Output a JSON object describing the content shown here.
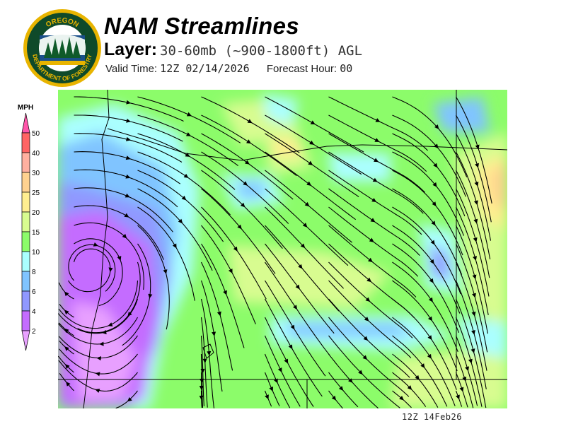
{
  "logo": {
    "text_top": "OREGON",
    "text_bottom": "DEPARTMENT OF FORESTRY"
  },
  "header": {
    "title": "NAM Streamlines",
    "layer_label": "Layer:",
    "layer_value": "30-60mb (~900-1800ft) AGL",
    "valid_label": "Valid Time:",
    "valid_value": "12Z 02/14/2026",
    "forecast_label": "Forecast Hour:",
    "forecast_value": "00"
  },
  "legend": {
    "unit": "MPH",
    "ticks": [
      "50",
      "40",
      "30",
      "25",
      "20",
      "15",
      "10",
      "8",
      "6",
      "4",
      "2"
    ],
    "colors": {
      "above_50": "#ff55aa",
      "40-50": "#ff6464",
      "30-40": "#ffb0a0",
      "25-30": "#ffd290",
      "20-25": "#ffee90",
      "15-20": "#d8fc90",
      "10-15": "#8cfc6a",
      "8-10": "#aaffff",
      "6-8": "#80c4ff",
      "4-6": "#9098ff",
      "2-4": "#c46cff",
      "below_2": "#e8a0ff"
    }
  },
  "map": {
    "layers": [
      "wind speed shading",
      "streamlines",
      "state boundaries",
      "coastline"
    ]
  },
  "footer": {
    "timestamp": "12Z 14Feb26"
  }
}
